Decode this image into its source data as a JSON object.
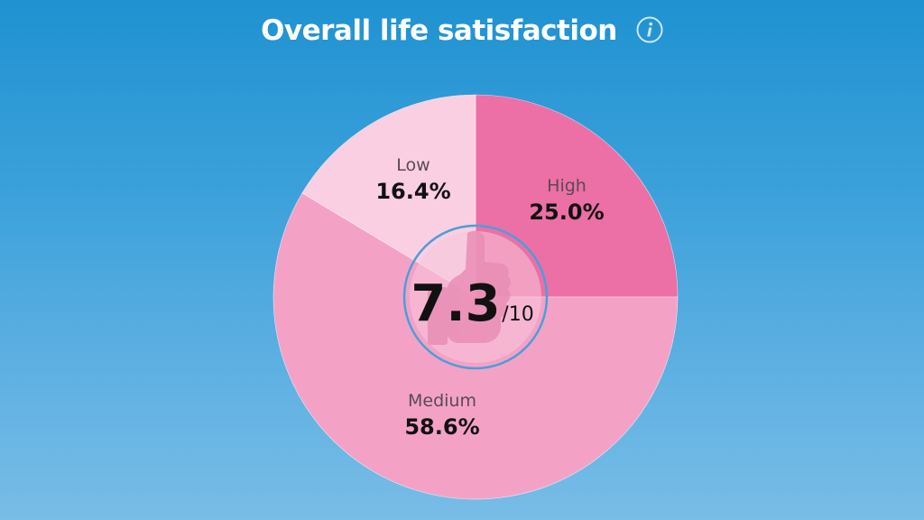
{
  "header": {
    "title": "Overall life satisfaction",
    "info_icon": "info-icon"
  },
  "score": {
    "value": "7.3",
    "suffix": "/10",
    "icon": "thumbs-up-icon"
  },
  "chart_data": {
    "type": "pie",
    "title": "Overall life satisfaction",
    "slices": [
      {
        "key": "high",
        "label": "High",
        "value": 25.0,
        "display": "25.0%",
        "color": "#ec6fa5"
      },
      {
        "key": "medium",
        "label": "Medium",
        "value": 58.6,
        "display": "58.6%",
        "color": "#f3a2c6"
      },
      {
        "key": "low",
        "label": "Low",
        "value": 16.4,
        "display": "16.4%",
        "color": "#f9cfe1"
      }
    ]
  },
  "colors": {
    "ring": "#4a9fd9",
    "center_fill": "#f7c6db",
    "thumb": "#e98db4",
    "divider": "#ffffff"
  }
}
